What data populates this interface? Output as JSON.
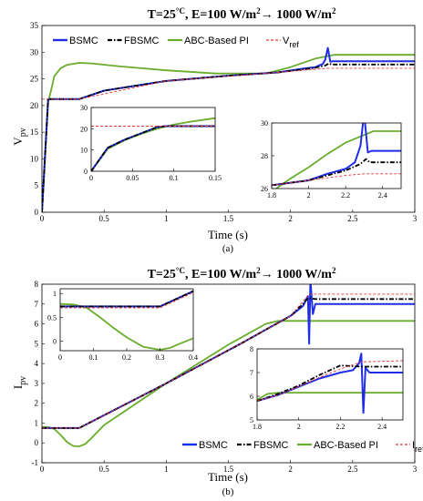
{
  "colors": {
    "BSMC": "#1f2ee6",
    "FBSMC": "#000000",
    "ABC": "#6aac2c",
    "Vref": "#e8363a",
    "Iref": "#e8363a"
  },
  "chart_data": [
    {
      "type": "line",
      "title_main": "T=25",
      "title_sup": "°C",
      "title_rest": ", E=100 W/m",
      "title_sup2": "2",
      "title_arrow": "→ 1000 W/m",
      "title_sup3": "2",
      "ylabel_main": "V",
      "ylabel_sub": "pv",
      "xlabel": "Time (s)",
      "caption": "(a)",
      "xlim": [
        0,
        3
      ],
      "ylim": [
        0,
        35
      ],
      "xticks": [
        "0",
        "0.5",
        "1",
        "1.5",
        "2",
        "2.5",
        "3"
      ],
      "yticks": [
        "0",
        "5",
        "10",
        "15",
        "20",
        "25",
        "30",
        "35"
      ],
      "legend": [
        "BSMC",
        "FBSMC",
        "ABC-Based PI",
        "V",
        "ref"
      ],
      "series": [
        {
          "name": "BSMC",
          "x": [
            0,
            0.05,
            0.09,
            0.3,
            0.5,
            1.0,
            1.5,
            1.9,
            2.1,
            2.2,
            2.26,
            2.28,
            2.3,
            2.32,
            2.34,
            3.0
          ],
          "y": [
            0,
            21.2,
            21.2,
            21.2,
            22.8,
            24.6,
            25.6,
            26.2,
            26.9,
            27.2,
            27.8,
            28.6,
            30.8,
            28.2,
            28.3,
            28.3
          ]
        },
        {
          "name": "FBSMC",
          "x": [
            0,
            0.05,
            0.09,
            0.3,
            0.5,
            1.0,
            1.5,
            1.9,
            2.1,
            2.2,
            2.28,
            2.31,
            2.33,
            3.0
          ],
          "y": [
            0,
            21.2,
            21.2,
            21.2,
            22.8,
            24.6,
            25.6,
            26.2,
            26.8,
            27.1,
            27.5,
            27.9,
            27.7,
            27.7
          ]
        },
        {
          "name": "ABC-Based PI",
          "x": [
            0,
            0.05,
            0.1,
            0.15,
            0.2,
            0.3,
            0.4,
            0.6,
            0.8,
            1.0,
            1.4,
            1.8,
            2.0,
            2.2,
            2.35,
            3.0
          ],
          "y": [
            0,
            20.5,
            25.5,
            27.0,
            27.6,
            28.0,
            27.9,
            27.4,
            27.0,
            26.6,
            26.0,
            26.0,
            27.2,
            28.8,
            29.5,
            29.5
          ]
        },
        {
          "name": "Vref",
          "x": [
            0,
            0.3,
            1.0,
            1.9,
            2.3,
            2.33,
            3.0
          ],
          "y": [
            21.2,
            21.2,
            24.6,
            26.2,
            27.0,
            27.0,
            27.0
          ]
        }
      ],
      "insets": [
        {
          "xlim": [
            0,
            0.15
          ],
          "ylim": [
            0,
            30
          ],
          "xticks": [
            "0",
            "0.05",
            "0.1",
            "0.15"
          ],
          "yticks": [
            "0",
            "10",
            "20",
            "30"
          ],
          "series": [
            {
              "name": "BSMC",
              "x": [
                0,
                0.02,
                0.04,
                0.06,
                0.08,
                0.09,
                0.15
              ],
              "y": [
                0,
                11,
                14.8,
                17.8,
                20.8,
                21.2,
                21.2
              ]
            },
            {
              "name": "FBSMC",
              "x": [
                0,
                0.02,
                0.04,
                0.06,
                0.08,
                0.09,
                0.15
              ],
              "y": [
                0,
                11,
                14.8,
                17.8,
                20.8,
                21.2,
                21.2
              ]
            },
            {
              "name": "ABC-Based PI",
              "x": [
                0,
                0.02,
                0.04,
                0.06,
                0.08,
                0.1,
                0.12,
                0.15
              ],
              "y": [
                0,
                10.5,
                14.5,
                17.5,
                20,
                22,
                23.3,
                25
              ]
            },
            {
              "name": "Vref",
              "x": [
                0,
                0.15
              ],
              "y": [
                21.2,
                21.2
              ]
            }
          ]
        },
        {
          "xlim": [
            1.8,
            2.5
          ],
          "ylim": [
            26,
            30
          ],
          "xticks": [
            "1.8",
            "2",
            "2.2",
            "2.4"
          ],
          "yticks": [
            "26",
            "28",
            "30"
          ],
          "series": [
            {
              "name": "BSMC",
              "x": [
                1.8,
                2.0,
                2.1,
                2.2,
                2.25,
                2.28,
                2.3,
                2.32,
                2.34,
                2.5
              ],
              "y": [
                26.2,
                26.5,
                26.9,
                27.2,
                27.6,
                28.6,
                30.6,
                28.2,
                28.3,
                28.3
              ]
            },
            {
              "name": "FBSMC",
              "x": [
                1.8,
                2.0,
                2.1,
                2.2,
                2.28,
                2.31,
                2.33,
                2.5
              ],
              "y": [
                26.2,
                26.5,
                26.8,
                27.1,
                27.5,
                27.8,
                27.6,
                27.6
              ]
            },
            {
              "name": "ABC-Based PI",
              "x": [
                1.8,
                1.85,
                1.9,
                2.0,
                2.1,
                2.2,
                2.35,
                2.5
              ],
              "y": [
                25.8,
                26.2,
                26.6,
                27.3,
                28.1,
                28.8,
                29.5,
                29.5
              ]
            },
            {
              "name": "Vref",
              "x": [
                1.8,
                2.0,
                2.2,
                2.3,
                2.33,
                2.5
              ],
              "y": [
                26.2,
                26.5,
                26.8,
                26.9,
                26.9,
                26.9
              ]
            }
          ]
        }
      ]
    },
    {
      "type": "line",
      "title_main": "T=25",
      "title_sup": "°C",
      "title_rest": ", E=100 W/m",
      "title_sup2": "2",
      "title_arrow": "→ 1000 W/m",
      "title_sup3": "2",
      "ylabel_main": "I",
      "ylabel_sub": "pv",
      "xlabel": "Time (s)",
      "caption": "(b)",
      "xlim": [
        0,
        3
      ],
      "ylim": [
        -1,
        8
      ],
      "xticks": [
        "0",
        "0.5",
        "1",
        "1.5",
        "2",
        "2.5",
        "3"
      ],
      "yticks": [
        "-1",
        "0",
        "1",
        "2",
        "3",
        "4",
        "5",
        "6",
        "7",
        "8"
      ],
      "legend": [
        "BSMC",
        "FBSMC",
        "ABC-Based PI",
        "I",
        "ref"
      ],
      "series": [
        {
          "name": "BSMC",
          "x": [
            0,
            0.3,
            1.0,
            1.6,
            2.0,
            2.1,
            2.14,
            2.15,
            2.16,
            2.18,
            2.2,
            2.3,
            3.0
          ],
          "y": [
            0.75,
            0.75,
            3.0,
            5.0,
            6.4,
            6.9,
            7.4,
            5.0,
            8.2,
            6.5,
            7.0,
            7.0,
            7.0
          ]
        },
        {
          "name": "FBSMC",
          "x": [
            0,
            0.3,
            1.0,
            1.6,
            2.0,
            2.1,
            2.14,
            2.2,
            3.0
          ],
          "y": [
            0.75,
            0.75,
            3.0,
            5.0,
            6.4,
            7.0,
            7.3,
            7.25,
            7.25
          ]
        },
        {
          "name": "ABC-Based PI",
          "x": [
            0,
            0.05,
            0.1,
            0.15,
            0.2,
            0.25,
            0.3,
            0.35,
            0.4,
            0.5,
            1.0,
            1.5,
            1.8,
            1.9,
            3.0
          ],
          "y": [
            0.8,
            0.8,
            0.7,
            0.4,
            0.05,
            -0.15,
            -0.18,
            -0.05,
            0.25,
            0.9,
            3.0,
            4.95,
            6.0,
            6.15,
            6.15
          ]
        },
        {
          "name": "Iref",
          "x": [
            0,
            0.3,
            1.0,
            1.6,
            2.0,
            2.15,
            3.0
          ],
          "y": [
            0.75,
            0.75,
            3.0,
            5.0,
            6.4,
            7.5,
            7.5
          ]
        }
      ],
      "insets": [
        {
          "xlim": [
            0,
            0.4
          ],
          "ylim": [
            -0.2,
            1.1
          ],
          "xticks": [
            "0",
            "0.1",
            "0.2",
            "0.3",
            "0.4"
          ],
          "yticks": [
            "0",
            "0.5",
            "1"
          ],
          "series": [
            {
              "name": "BSMC",
              "x": [
                0,
                0.05,
                0.08,
                0.3,
                0.4
              ],
              "y": [
                0.73,
                0.73,
                0.73,
                0.73,
                1.05
              ]
            },
            {
              "name": "FBSMC",
              "x": [
                0,
                0.05,
                0.08,
                0.3,
                0.4
              ],
              "y": [
                0.73,
                0.73,
                0.73,
                0.73,
                1.05
              ]
            },
            {
              "name": "ABC-Based PI",
              "x": [
                0,
                0.04,
                0.08,
                0.12,
                0.16,
                0.2,
                0.25,
                0.3,
                0.33,
                0.36,
                0.4
              ],
              "y": [
                0.78,
                0.77,
                0.7,
                0.5,
                0.28,
                0.08,
                -0.12,
                -0.18,
                -0.14,
                -0.05,
                0.06
              ]
            },
            {
              "name": "Iref",
              "x": [
                0,
                0.3,
                0.4
              ],
              "y": [
                0.7,
                0.7,
                1.02
              ]
            }
          ]
        },
        {
          "xlim": [
            1.8,
            2.5
          ],
          "ylim": [
            5,
            8
          ],
          "xticks": [
            "1.8",
            "2",
            "2.2",
            "2.4"
          ],
          "yticks": [
            "5",
            "6",
            "7",
            "8"
          ],
          "series": [
            {
              "name": "BSMC",
              "x": [
                1.8,
                1.9,
                2.0,
                2.1,
                2.2,
                2.26,
                2.29,
                2.3,
                2.31,
                2.32,
                2.34,
                2.5
              ],
              "y": [
                5.8,
                6.05,
                6.4,
                6.75,
                7.0,
                7.1,
                7.4,
                7.8,
                5.3,
                7.2,
                7.0,
                7.0
              ]
            },
            {
              "name": "FBSMC",
              "x": [
                1.8,
                1.9,
                2.0,
                2.1,
                2.2,
                2.3,
                2.32,
                2.5
              ],
              "y": [
                5.8,
                6.1,
                6.45,
                6.9,
                7.3,
                7.25,
                7.25,
                7.25
              ]
            },
            {
              "name": "ABC-Based PI",
              "x": [
                1.8,
                1.85,
                1.9,
                2.5
              ],
              "y": [
                5.85,
                6.1,
                6.15,
                6.15
              ]
            },
            {
              "name": "Iref",
              "x": [
                1.8,
                1.9,
                2.0,
                2.1,
                2.2,
                2.3,
                2.5
              ],
              "y": [
                5.8,
                6.05,
                6.4,
                6.8,
                7.15,
                7.45,
                7.5
              ]
            }
          ]
        }
      ]
    }
  ]
}
